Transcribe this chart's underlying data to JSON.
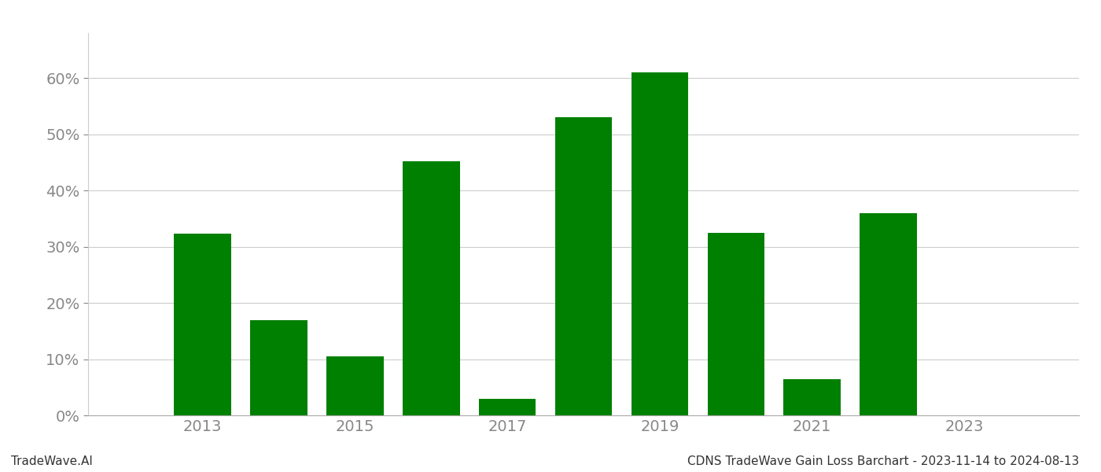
{
  "years": [
    2013,
    2014,
    2015,
    2016,
    2017,
    2018,
    2019,
    2020,
    2021,
    2022,
    2023
  ],
  "values": [
    32.3,
    17.0,
    10.5,
    45.2,
    3.0,
    53.0,
    61.0,
    32.5,
    6.5,
    36.0,
    0.0
  ],
  "bar_color": "#008000",
  "background_color": "#ffffff",
  "grid_color": "#cccccc",
  "ytick_color": "#888888",
  "xtick_color": "#888888",
  "title_text": "CDNS TradeWave Gain Loss Barchart - 2023-11-14 to 2024-08-13",
  "watermark_text": "TradeWave.AI",
  "title_fontsize": 11,
  "watermark_fontsize": 11,
  "tick_fontsize": 14,
  "ylim": [
    0,
    68
  ],
  "yticks": [
    0,
    10,
    20,
    30,
    40,
    50,
    60
  ],
  "xtick_labels": [
    "2013",
    "2015",
    "2017",
    "2019",
    "2021",
    "2023"
  ],
  "xtick_positions": [
    2013,
    2015,
    2017,
    2019,
    2021,
    2023
  ],
  "xlim": [
    2011.5,
    2024.5
  ]
}
